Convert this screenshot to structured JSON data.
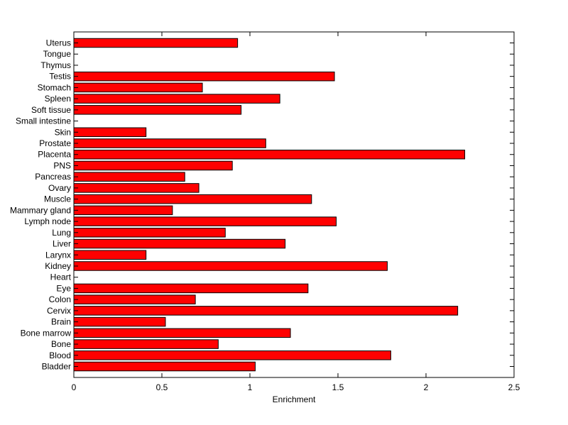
{
  "chart_data": {
    "type": "bar",
    "orientation": "horizontal",
    "title": "",
    "xlabel": "Enrichment",
    "ylabel": "",
    "xlim": [
      0,
      2.5
    ],
    "xticks": [
      0,
      0.5,
      1,
      1.5,
      2,
      2.5
    ],
    "xtick_labels": [
      "0",
      "0.5",
      "1",
      "1.5",
      "2",
      "2.5"
    ],
    "grid": false,
    "legend": "none",
    "bar_color": "#ff0000",
    "bar_edge_color": "#000000",
    "categories": [
      "Bladder",
      "Blood",
      "Bone",
      "Bone marrow",
      "Brain",
      "Cervix",
      "Colon",
      "Eye",
      "Heart",
      "Kidney",
      "Larynx",
      "Liver",
      "Lung",
      "Lymph node",
      "Mammary gland",
      "Muscle",
      "Ovary",
      "Pancreas",
      "PNS",
      "Placenta",
      "Prostate",
      "Skin",
      "Small intestine",
      "Soft tissue",
      "Spleen",
      "Stomach",
      "Testis",
      "Thymus",
      "Tongue",
      "Uterus"
    ],
    "values": [
      1.03,
      1.8,
      0.82,
      1.23,
      0.52,
      2.18,
      0.69,
      1.33,
      0,
      1.78,
      0.41,
      1.2,
      0.86,
      1.49,
      0.56,
      1.35,
      0.71,
      0.63,
      0.9,
      2.22,
      1.09,
      0.41,
      0,
      0.95,
      1.17,
      0.73,
      1.48,
      0,
      0,
      0.93
    ]
  }
}
